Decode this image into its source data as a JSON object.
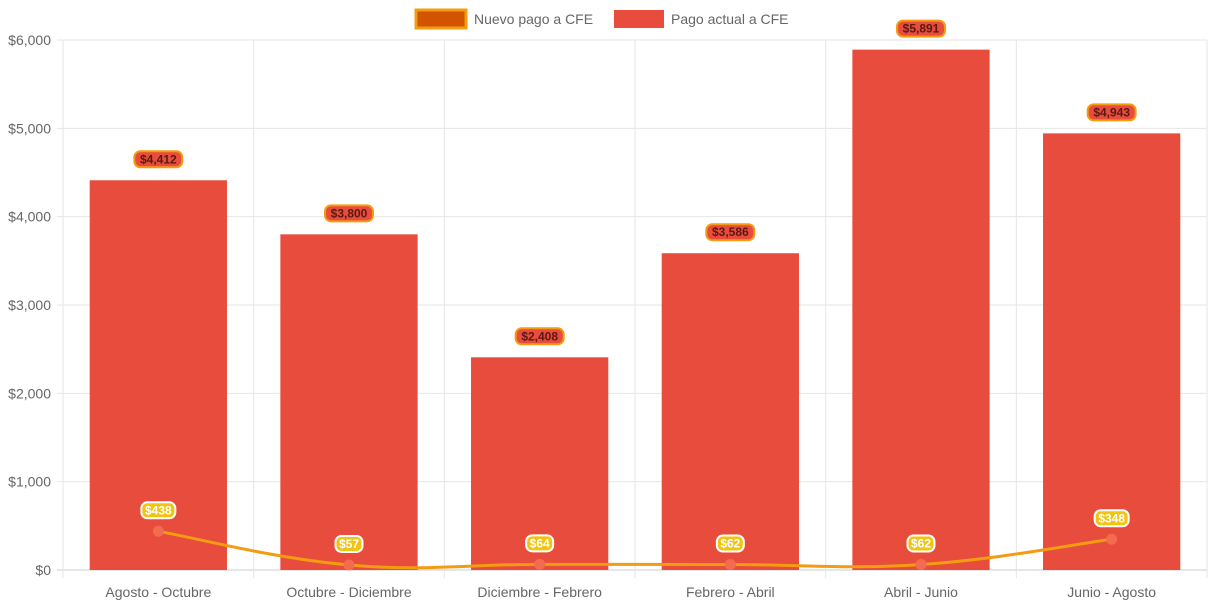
{
  "chart_data": {
    "type": "bar",
    "categories": [
      "Agosto - Octubre",
      "Octubre - Diciembre",
      "Diciembre - Febrero",
      "Febrero - Abril",
      "Abril - Junio",
      "Junio - Agosto"
    ],
    "series": [
      {
        "name": "Nuevo pago a CFE",
        "type": "line",
        "values": [
          438,
          57,
          64,
          62,
          62,
          348
        ],
        "labels": [
          "$438",
          "$57",
          "$64",
          "$62",
          "$62",
          "$348"
        ],
        "color": "#f39c12",
        "legend_fill": "#d35400",
        "point_color": "#f36c4f",
        "label_bg": "#f1c40f",
        "label_text_color": "#ffffff"
      },
      {
        "name": "Pago actual a CFE",
        "type": "bar",
        "values": [
          4412,
          3800,
          2408,
          3586,
          5891,
          4943
        ],
        "labels": [
          "$4,412",
          "$3,800",
          "$2,408",
          "$3,586",
          "$5,891",
          "$4,943"
        ],
        "color": "#e74c3c",
        "label_bg": "#e74c3c",
        "label_border": "#f39c12",
        "label_text_color": "#5a1a12"
      }
    ],
    "y_ticks": [
      0,
      1000,
      2000,
      3000,
      4000,
      5000,
      6000
    ],
    "y_tick_labels": [
      "$0",
      "$1,000",
      "$2,000",
      "$3,000",
      "$4,000",
      "$5,000",
      "$6,000"
    ],
    "ylim": [
      0,
      6000
    ],
    "grid": true,
    "legend_position": "top-center",
    "title": "",
    "xlabel": "",
    "ylabel": ""
  }
}
